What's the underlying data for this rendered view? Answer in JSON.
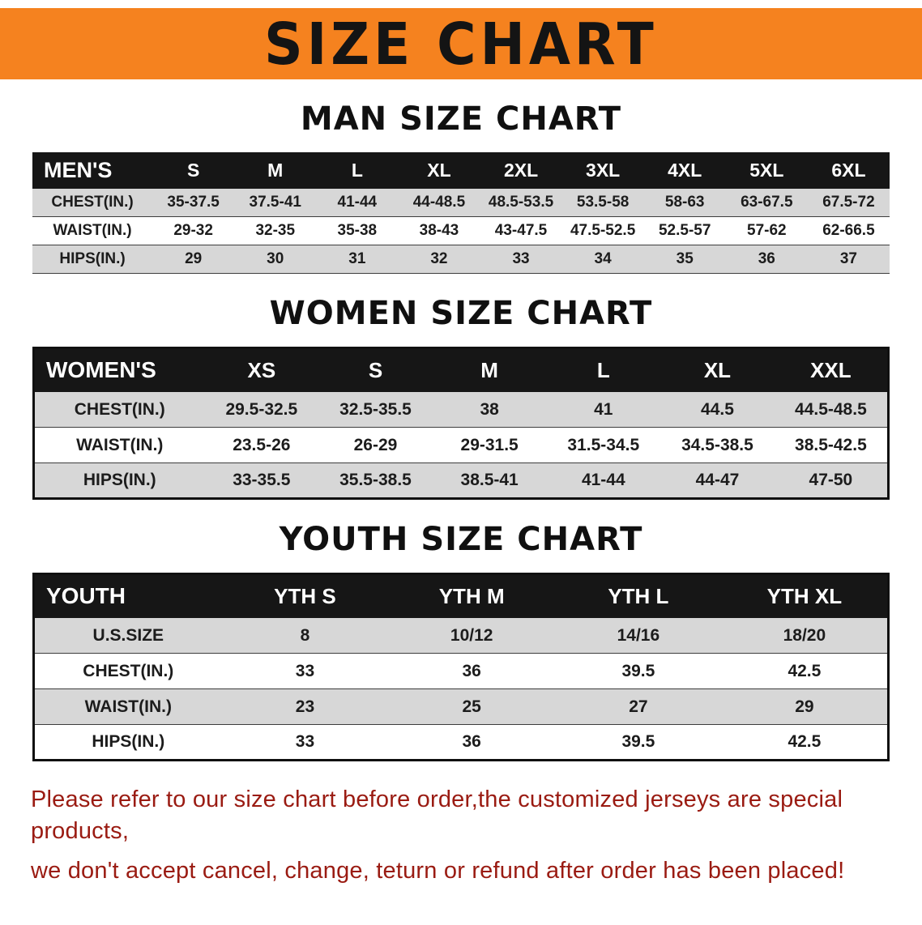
{
  "colors": {
    "banner-bg": "#f5821f",
    "header-bg": "#161616",
    "row-gray": "#d7d7d7",
    "footer-red": "#9a1b12"
  },
  "banner": {
    "title": "SIZE CHART"
  },
  "sections": [
    {
      "heading": "MAN SIZE CHART",
      "table": {
        "header": [
          "MEN'S",
          "S",
          "M",
          "L",
          "XL",
          "2XL",
          "3XL",
          "4XL",
          "5XL",
          "6XL"
        ],
        "rows": [
          [
            "CHEST(IN.)",
            "35-37.5",
            "37.5-41",
            "41-44",
            "44-48.5",
            "48.5-53.5",
            "53.5-58",
            "58-63",
            "63-67.5",
            "67.5-72"
          ],
          [
            "WAIST(IN.)",
            "29-32",
            "32-35",
            "35-38",
            "38-43",
            "43-47.5",
            "47.5-52.5",
            "52.5-57",
            "57-62",
            "62-66.5"
          ],
          [
            "HIPS(IN.)",
            "29",
            "30",
            "31",
            "32",
            "33",
            "34",
            "35",
            "36",
            "37"
          ]
        ]
      }
    },
    {
      "heading": "WOMEN SIZE CHART",
      "table": {
        "header": [
          "WOMEN'S",
          "XS",
          "S",
          "M",
          "L",
          "XL",
          "XXL"
        ],
        "rows": [
          [
            "CHEST(IN.)",
            "29.5-32.5",
            "32.5-35.5",
            "38",
            "41",
            "44.5",
            "44.5-48.5"
          ],
          [
            "WAIST(IN.)",
            "23.5-26",
            "26-29",
            "29-31.5",
            "31.5-34.5",
            "34.5-38.5",
            "38.5-42.5"
          ],
          [
            "HIPS(IN.)",
            "33-35.5",
            "35.5-38.5",
            "38.5-41",
            "41-44",
            "44-47",
            "47-50"
          ]
        ]
      }
    },
    {
      "heading": "YOUTH SIZE CHART",
      "table": {
        "header": [
          "YOUTH",
          "YTH S",
          "YTH M",
          "YTH L",
          "YTH XL"
        ],
        "rows": [
          [
            "U.S.SIZE",
            "8",
            "10/12",
            "14/16",
            "18/20"
          ],
          [
            "CHEST(IN.)",
            "33",
            "36",
            "39.5",
            "42.5"
          ],
          [
            "WAIST(IN.)",
            "23",
            "25",
            "27",
            "29"
          ],
          [
            "HIPS(IN.)",
            "33",
            "36",
            "39.5",
            "42.5"
          ]
        ]
      }
    }
  ],
  "footer": {
    "line1": "Please refer to our size chart before order,the customized jerseys are special products,",
    "line2": "we don't accept cancel, change, teturn or refund after order has been placed!"
  }
}
